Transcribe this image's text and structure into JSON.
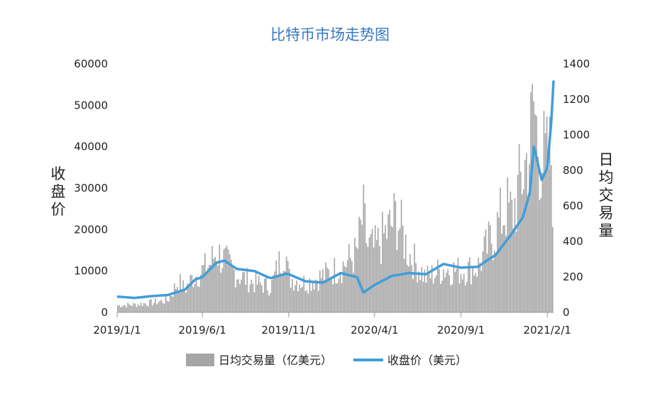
{
  "chart_data": {
    "type": "bar",
    "title": "比特币市场走势图",
    "y_left_label": "收盘价",
    "y_right_label": "日均交易量",
    "y_left_ticks": [
      "60000",
      "50000",
      "40000",
      "30000",
      "20000",
      "10000",
      "0"
    ],
    "y_right_ticks": [
      "1400",
      "1200",
      "1000",
      "800",
      "600",
      "400",
      "200",
      "0"
    ],
    "x_ticks": [
      "2019/1/1",
      "2019/6/1",
      "2019/11/1",
      "2020/4/1",
      "2020/9/1",
      "2021/2/1"
    ],
    "ylim_left": [
      0,
      60000
    ],
    "ylim_right": [
      0,
      1400
    ],
    "x_range": [
      "2019/1/1",
      "2021/2/12"
    ],
    "legend_position": "bottom",
    "colors": {
      "bar": "#a6a6a6",
      "line": "#3f9ed9",
      "title": "#3a78c3",
      "text": "#222222"
    },
    "series": [
      {
        "name": "日均交易量（亿美元）",
        "type": "bar",
        "axis": "right",
        "x": [
          "2019/1/1",
          "2019/2/1",
          "2019/3/1",
          "2019/4/1",
          "2019/4/20",
          "2019/5/1",
          "2019/5/15",
          "2019/6/1",
          "2019/6/15",
          "2019/6/26",
          "2019/7/10",
          "2019/8/1",
          "2019/9/1",
          "2019/10/1",
          "2019/10/26",
          "2019/11/1",
          "2019/12/1",
          "2020/1/1",
          "2020/2/1",
          "2020/3/1",
          "2020/3/12",
          "2020/3/20",
          "2020/4/1",
          "2020/5/1",
          "2020/5/10",
          "2020/6/1",
          "2020/7/1",
          "2020/8/1",
          "2020/9/1",
          "2020/10/1",
          "2020/11/1",
          "2020/11/20",
          "2020/12/1",
          "2020/12/20",
          "2021/1/1",
          "2021/1/8",
          "2021/1/15",
          "2021/1/22",
          "2021/2/1",
          "2021/2/8",
          "2021/2/12"
        ],
        "values": [
          40,
          45,
          55,
          70,
          180,
          130,
          200,
          240,
          280,
          350,
          300,
          220,
          170,
          150,
          380,
          200,
          170,
          210,
          260,
          340,
          560,
          380,
          360,
          500,
          560,
          340,
          200,
          250,
          240,
          260,
          470,
          600,
          560,
          800,
          940,
          1200,
          1000,
          900,
          850,
          900,
          640
        ]
      },
      {
        "name": "收盘价（美元）",
        "type": "line",
        "axis": "left",
        "x": [
          "2019/1/1",
          "2019/2/1",
          "2019/3/1",
          "2019/4/1",
          "2019/5/1",
          "2019/5/20",
          "2019/6/1",
          "2019/6/26",
          "2019/7/10",
          "2019/8/1",
          "2019/9/1",
          "2019/9/25",
          "2019/10/1",
          "2019/10/26",
          "2019/11/1",
          "2019/12/1",
          "2020/1/1",
          "2020/2/1",
          "2020/3/1",
          "2020/3/12",
          "2020/4/1",
          "2020/5/1",
          "2020/6/1",
          "2020/7/1",
          "2020/8/1",
          "2020/9/1",
          "2020/10/1",
          "2020/10/20",
          "2020/11/1",
          "2020/12/1",
          "2020/12/20",
          "2021/1/1",
          "2021/1/8",
          "2021/1/15",
          "2021/1/22",
          "2021/1/29",
          "2021/2/1",
          "2021/2/8",
          "2021/2/12"
        ],
        "values": [
          3800,
          3500,
          3900,
          4200,
          5500,
          8000,
          8500,
          12000,
          12500,
          10500,
          10000,
          8500,
          8300,
          9300,
          9200,
          7500,
          7200,
          9500,
          8500,
          4800,
          6600,
          8800,
          9500,
          9200,
          11700,
          10800,
          11000,
          12800,
          13800,
          19200,
          23000,
          29000,
          40000,
          36000,
          32000,
          34000,
          35000,
          46000,
          56000
        ]
      }
    ]
  },
  "legend": {
    "bar_label": "日均交易量（亿美元）",
    "line_label": "收盘价（美元）"
  }
}
